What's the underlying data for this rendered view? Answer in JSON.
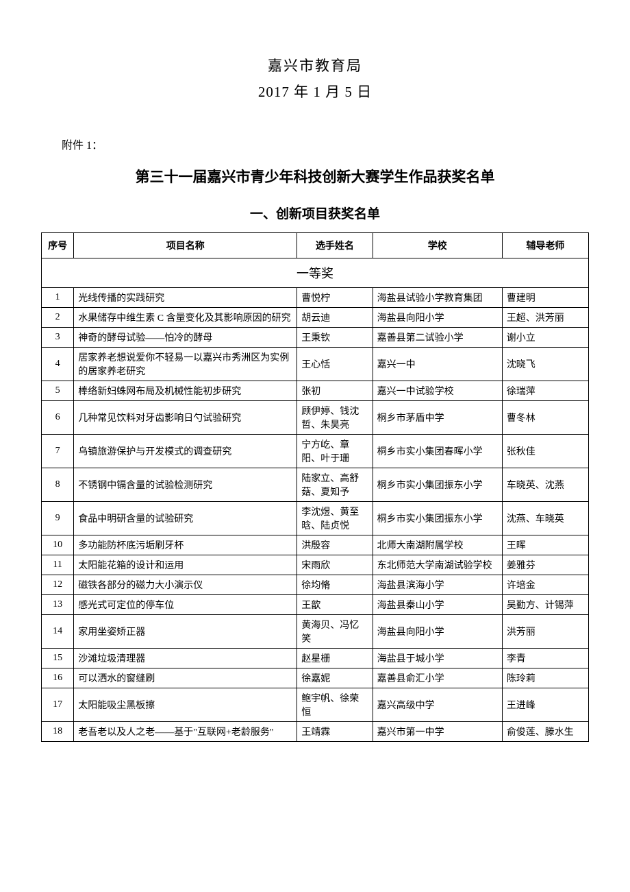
{
  "header": {
    "org": "嘉兴市教育局",
    "date": "2017 年 1 月 5 日"
  },
  "attachment_label": "附件 1：",
  "main_title": "第三十一届嘉兴市青少年科技创新大赛学生作品获奖名单",
  "section_title": "一、创新项目获奖名单",
  "table": {
    "columns": [
      "序号",
      "项目名称",
      "选手姓名",
      "学校",
      "辅导老师"
    ],
    "prize_header": "一等奖",
    "rows": [
      {
        "seq": "1",
        "project": "光线传播的实践研究",
        "name": "曹悦柠",
        "school": "海盐县试验小学教育集团",
        "teacher": "曹建明"
      },
      {
        "seq": "2",
        "project": "水果储存中维生素 C 含量变化及其影响原因的研究",
        "name": "胡云迪",
        "school": "海盐县向阳小学",
        "teacher": "王超、洪芳丽"
      },
      {
        "seq": "3",
        "project": "神奇的酵母试验——怕冷的酵母",
        "name": "王秉钦",
        "school": "嘉善县第二试验小学",
        "teacher": "谢小立"
      },
      {
        "seq": "4",
        "project": "居家养老想说爱你不轻易一以嘉兴市秀洲区为实例的居家养老研究",
        "name": "王心恬",
        "school": "嘉兴一中",
        "teacher": "沈晓飞"
      },
      {
        "seq": "5",
        "project": "棒络新妇蛛网布局及机械性能初步研究",
        "name": "张初",
        "school": "嘉兴一中试验学校",
        "teacher": "徐瑞萍"
      },
      {
        "seq": "6",
        "project": "几种常见饮料对牙齿影响日勺试验研究",
        "name": "顾伊婷、钱沈哲、朱昊亮",
        "school": "桐乡市茅盾中学",
        "teacher": "曹冬林"
      },
      {
        "seq": "7",
        "project": "乌镇旅游保护与开发模式的调查研究",
        "name": "宁方屹、章阳、叶于珊",
        "school": "桐乡市实小集团春晖小学",
        "teacher": "张秋佳"
      },
      {
        "seq": "8",
        "project": "不锈钢中镉含量的试验检测研究",
        "name": "陆家立、高舒菇、夏知予",
        "school": "桐乡市实小集团振东小学",
        "teacher": "车晓英、沈燕"
      },
      {
        "seq": "9",
        "project": "食品中明研含量的试验研究",
        "name": "李沈煜、黄至晗、陆贞悦",
        "school": "桐乡市实小集团振东小学",
        "teacher": "沈燕、车晓英"
      },
      {
        "seq": "10",
        "project": "多功能防杯底污垢刷牙杯",
        "name": "洪殷容",
        "school": "北师大南湖附属学校",
        "teacher": "王晖"
      },
      {
        "seq": "11",
        "project": "太阳能花箱的设计和运用",
        "name": "宋雨欣",
        "school": "东北师范大学南湖试验学校",
        "teacher": "姜雅芬"
      },
      {
        "seq": "12",
        "project": "磁铁各部分的磁力大小演示仪",
        "name": "徐均脩",
        "school": "海盐县滨海小学",
        "teacher": "许培金"
      },
      {
        "seq": "13",
        "project": "感光式可定位的停车位",
        "name": "王歆",
        "school": "海盐县秦山小学",
        "teacher": "吴勤方、计锡萍"
      },
      {
        "seq": "14",
        "project": "家用坐姿矫正器",
        "name": "黄海贝、冯忆笑",
        "school": "海盐县向阳小学",
        "teacher": "洪芳丽"
      },
      {
        "seq": "15",
        "project": "沙滩垃圾清理器",
        "name": "赵星栅",
        "school": "海盐县于城小学",
        "teacher": "李青"
      },
      {
        "seq": "16",
        "project": "可以洒水的窗缝刷",
        "name": "徐嘉妮",
        "school": "嘉善县俞汇小学",
        "teacher": "陈玲莉"
      },
      {
        "seq": "17",
        "project": "太阳能吸尘黑板擦",
        "name": "鲍宇帆、徐荣恒",
        "school": "嘉兴高级中学",
        "teacher": "王进峰"
      },
      {
        "seq": "18",
        "project": "老吾老以及人之老――基于\"互联网+老龄服务\"",
        "name": "王靖霖",
        "school": "嘉兴市第一中学",
        "teacher": "俞俊莲、滕水生"
      }
    ]
  }
}
